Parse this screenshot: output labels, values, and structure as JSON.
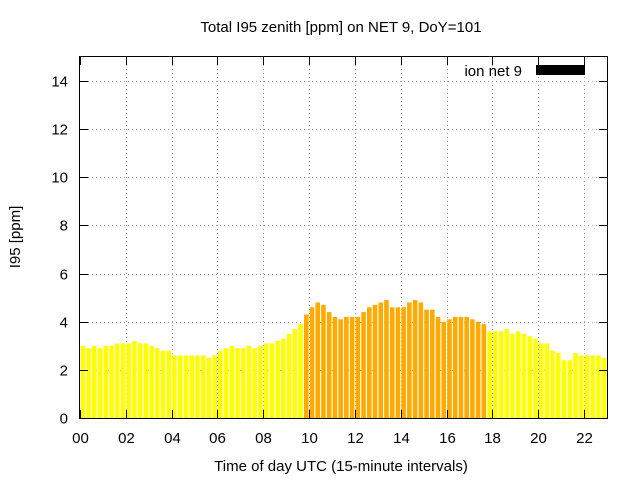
{
  "chart_data": {
    "type": "bar",
    "title": "Total I95 zenith [ppm] on NET 9, DoY=101",
    "xlabel": "Time of day UTC (15-minute intervals)",
    "ylabel": "I95 [ppm]",
    "xlim": [
      0,
      23
    ],
    "ylim": [
      0,
      15
    ],
    "x_ticks": [
      "00",
      "02",
      "04",
      "06",
      "08",
      "10",
      "12",
      "14",
      "16",
      "18",
      "20",
      "22"
    ],
    "y_ticks": [
      "0",
      "2",
      "4",
      "6",
      "8",
      "10",
      "12",
      "14"
    ],
    "grid": true,
    "legend_position": "top-right",
    "interval_hours": 0.25,
    "series": [
      {
        "name": "ion net 9",
        "legend_color": "#000000",
        "x": [
          0,
          0.25,
          0.5,
          0.75,
          1,
          1.25,
          1.5,
          1.75,
          2,
          2.25,
          2.5,
          2.75,
          3,
          3.25,
          3.5,
          3.75,
          4,
          4.25,
          4.5,
          4.75,
          5,
          5.25,
          5.5,
          5.75,
          6,
          6.25,
          6.5,
          6.75,
          7,
          7.25,
          7.5,
          7.75,
          8,
          8.25,
          8.5,
          8.75,
          9,
          9.25,
          9.5,
          9.75,
          10,
          10.25,
          10.5,
          10.75,
          11,
          11.25,
          11.5,
          11.75,
          12,
          12.25,
          12.5,
          12.75,
          13,
          13.25,
          13.5,
          13.75,
          14,
          14.25,
          14.5,
          14.75,
          15,
          15.25,
          15.5,
          15.75,
          16,
          16.25,
          16.5,
          16.75,
          17,
          17.25,
          17.5,
          17.75,
          18,
          18.25,
          18.5,
          18.75,
          19,
          19.25,
          19.5,
          19.75,
          20,
          20.25,
          20.5,
          20.75,
          21,
          21.25,
          21.5,
          21.75,
          22,
          22.25,
          22.5,
          22.75
        ],
        "values": [
          3.0,
          2.9,
          3.0,
          2.9,
          3.0,
          3.0,
          3.1,
          3.1,
          3.1,
          3.2,
          3.1,
          3.1,
          3.0,
          2.9,
          2.8,
          2.8,
          2.6,
          2.6,
          2.6,
          2.6,
          2.6,
          2.6,
          2.5,
          2.6,
          2.8,
          2.9,
          3.0,
          2.9,
          2.9,
          3.0,
          2.9,
          3.0,
          3.1,
          3.1,
          3.2,
          3.3,
          3.5,
          3.7,
          3.9,
          4.3,
          4.6,
          4.8,
          4.7,
          4.4,
          4.2,
          4.1,
          4.2,
          4.2,
          4.2,
          4.4,
          4.6,
          4.7,
          4.8,
          4.9,
          4.6,
          4.6,
          4.6,
          4.8,
          4.9,
          4.8,
          4.5,
          4.5,
          4.2,
          4.0,
          4.1,
          4.2,
          4.2,
          4.2,
          4.1,
          4.0,
          3.9,
          3.6,
          3.6,
          3.6,
          3.7,
          3.5,
          3.6,
          3.5,
          3.4,
          3.3,
          3.1,
          3.1,
          2.8,
          2.7,
          2.4,
          2.4,
          2.7,
          2.6,
          2.6,
          2.6,
          2.6,
          2.5
        ],
        "colors": {
          "low": "#ffff00",
          "high": "#ffaa00"
        },
        "high_range": [
          9.75,
          17.5
        ]
      }
    ]
  }
}
